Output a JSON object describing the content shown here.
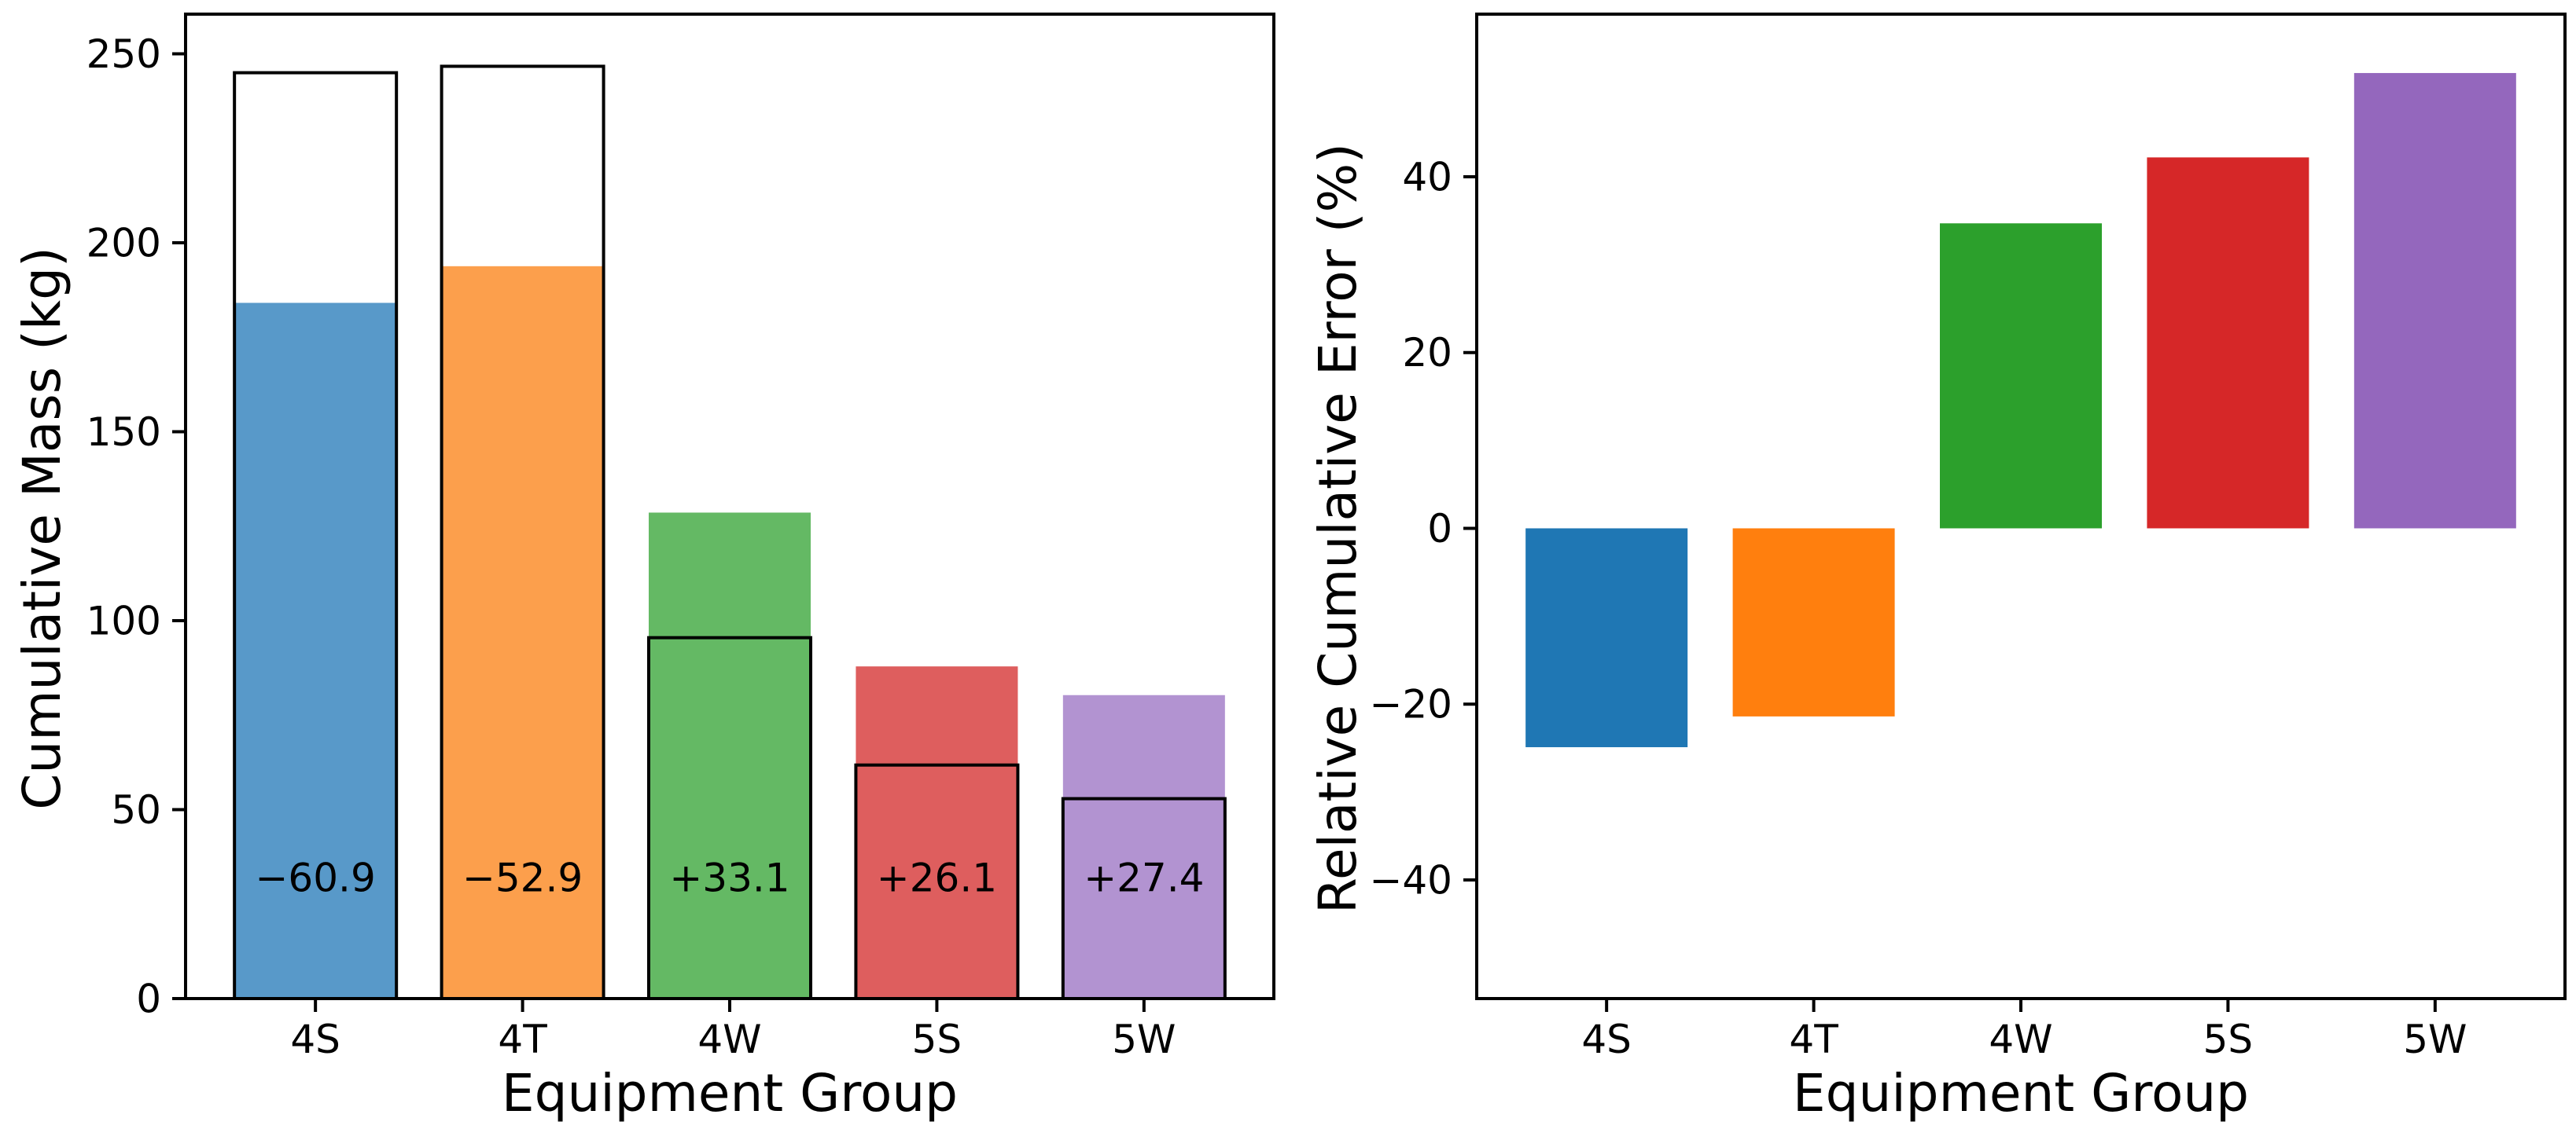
{
  "figure": {
    "background": "#ffffff",
    "text_color": "#000000",
    "spine_color": "#000000"
  },
  "chart_data": [
    {
      "type": "bar",
      "id": "cumulative-mass",
      "title": "",
      "xlabel": "Equipment Group",
      "ylabel": "Cumulative Mass (kg)",
      "categories": [
        "4S",
        "4T",
        "4W",
        "5S",
        "5W"
      ],
      "ylim": [
        0,
        260.5
      ],
      "yticks": [
        {
          "v": 0,
          "label": "0"
        },
        {
          "v": 50,
          "label": "50"
        },
        {
          "v": 100,
          "label": "100"
        },
        {
          "v": 150,
          "label": "150"
        },
        {
          "v": 200,
          "label": "200"
        },
        {
          "v": 250,
          "label": "250"
        }
      ],
      "grid": false,
      "legend": null,
      "series": [
        {
          "name": "filled-estimate",
          "style": "filled",
          "values": [
            184.1,
            193.8,
            128.6,
            87.9,
            80.3
          ],
          "colors": [
            "#5899C9",
            "#FC9F4C",
            "#64B964",
            "#DE5E5E",
            "#B293D1"
          ]
        },
        {
          "name": "outline-reference",
          "style": "outline",
          "values": [
            245.0,
            246.7,
            95.5,
            61.8,
            52.9
          ],
          "edge_color": "#000000"
        }
      ],
      "annotations": [
        {
          "category": "4S",
          "text": "−60.9",
          "y": 32
        },
        {
          "category": "4T",
          "text": "−52.9",
          "y": 32
        },
        {
          "category": "4W",
          "text": "+33.1",
          "y": 32
        },
        {
          "category": "5S",
          "text": "+26.1",
          "y": 32
        },
        {
          "category": "5W",
          "text": "+27.4",
          "y": 32
        }
      ]
    },
    {
      "type": "bar",
      "id": "relative-cumulative-error",
      "title": "",
      "xlabel": "Equipment Group",
      "ylabel": "Relative Cumulative Error (%)",
      "categories": [
        "4S",
        "4T",
        "4W",
        "5S",
        "5W"
      ],
      "ylim": [
        -53.5,
        58.5
      ],
      "yticks": [
        {
          "v": -40,
          "label": "−40"
        },
        {
          "v": -20,
          "label": "−20"
        },
        {
          "v": 0,
          "label": "0"
        },
        {
          "v": 20,
          "label": "20"
        },
        {
          "v": 40,
          "label": "40"
        }
      ],
      "grid": false,
      "legend": null,
      "series": [
        {
          "name": "relative-error",
          "style": "filled",
          "values": [
            -24.9,
            -21.4,
            34.7,
            42.2,
            51.8
          ],
          "colors": [
            "#1F77B4",
            "#FF7F0E",
            "#2CA02C",
            "#D62728",
            "#9467BD"
          ]
        }
      ],
      "annotations": []
    }
  ]
}
